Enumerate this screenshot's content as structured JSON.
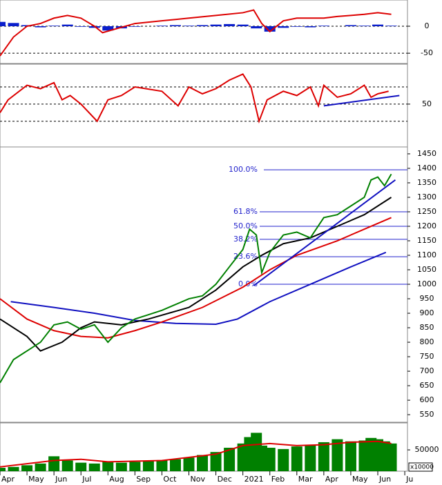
{
  "chart_data": [
    {
      "type": "line",
      "xlim": [
        0,
        15.1
      ],
      "ylim": [
        -69,
        46
      ],
      "yticks": [
        0,
        -50
      ],
      "series": [
        {
          "style": "bar",
          "color": "#0a1ecc",
          "x": [
            0,
            0.5,
            1,
            1.5,
            2,
            2.5,
            3,
            3.5,
            4,
            4.5,
            5,
            5.5,
            6,
            6.5,
            7,
            7.5,
            8,
            8.5,
            9,
            9.5,
            10,
            10.5,
            11,
            11.5,
            12,
            12.5,
            13,
            13.5,
            14,
            14.5
          ],
          "values": [
            8,
            6,
            2,
            -2,
            1,
            3,
            -1,
            -3,
            -8,
            -4,
            -1,
            0,
            1,
            2,
            1,
            2,
            3,
            4,
            3,
            -4,
            -10,
            -3,
            -1,
            -2,
            1,
            0,
            2,
            1,
            3,
            1
          ]
        },
        {
          "style": "line",
          "color": "#dd0000",
          "x": [
            0,
            0.5,
            1,
            1.5,
            2,
            2.5,
            3,
            3.5,
            3.8,
            4.5,
            5,
            6,
            7,
            8,
            9,
            9.4,
            9.7,
            10,
            10.5,
            11,
            12,
            12.5,
            13,
            13.5,
            14,
            14.5
          ],
          "values": [
            -55,
            -20,
            0,
            5,
            15,
            20,
            15,
            0,
            -12,
            -2,
            5,
            10,
            15,
            20,
            25,
            30,
            5,
            -10,
            10,
            15,
            15,
            18,
            20,
            22,
            25,
            22
          ]
        }
      ]
    },
    {
      "type": "line",
      "xlim": [
        0,
        15.1
      ],
      "ylim": [
        0,
        95
      ],
      "yticks": [
        50
      ],
      "hlines": [
        70,
        50,
        30
      ],
      "series": [
        {
          "style": "line",
          "color": "#dd0000",
          "x": [
            0,
            0.3,
            1,
            1.5,
            2,
            2.3,
            2.6,
            3,
            3.6,
            4,
            4.5,
            5,
            6,
            6.6,
            7,
            7.5,
            8,
            8.5,
            9,
            9.3,
            9.6,
            9.9,
            10.5,
            11,
            11.5,
            11.8,
            12,
            12.5,
            13,
            13.5,
            13.75,
            14,
            14.4
          ],
          "values": [
            40,
            55,
            72,
            68,
            75,
            55,
            60,
            50,
            30,
            55,
            60,
            70,
            65,
            48,
            70,
            62,
            68,
            78,
            85,
            70,
            30,
            55,
            65,
            60,
            70,
            48,
            72,
            58,
            62,
            72,
            58,
            62,
            65
          ]
        },
        {
          "style": "line",
          "color": "#1010c0",
          "x": [
            12,
            14.8
          ],
          "values": [
            48,
            60
          ]
        }
      ]
    },
    {
      "type": "line",
      "xlim": [
        0,
        15.1
      ],
      "ylim": [
        524,
        1469
      ],
      "yticks": [
        550,
        600,
        650,
        700,
        750,
        800,
        850,
        900,
        950,
        1000,
        1050,
        1100,
        1150,
        1200,
        1250,
        1300,
        1350,
        1400,
        1450
      ],
      "fib_levels": [
        {
          "value": 1395,
          "label": "100.0%"
        },
        {
          "value": 1250,
          "label": "61.8%"
        },
        {
          "value": 1200,
          "label": "50.0%"
        },
        {
          "value": 1155,
          "label": "38.2%"
        },
        {
          "value": 1095,
          "label": "23.6%"
        },
        {
          "value": 1000,
          "label": "0.0%"
        }
      ],
      "series": [
        {
          "style": "line",
          "color": "#1010c0",
          "x": [
            0.4,
            2,
            3.5,
            5,
            6.5,
            8,
            8.8,
            10,
            11.5,
            13,
            14.3
          ],
          "values": [
            940,
            920,
            900,
            875,
            865,
            862,
            880,
            940,
            1000,
            1060,
            1110
          ]
        },
        {
          "style": "line",
          "color": "#dd0000",
          "x": [
            0,
            1,
            2,
            3,
            4,
            5,
            6,
            7.5,
            9,
            10,
            11,
            12.5,
            13.5,
            14.5
          ],
          "values": [
            950,
            880,
            840,
            820,
            815,
            840,
            870,
            920,
            990,
            1050,
            1100,
            1150,
            1190,
            1230
          ]
        },
        {
          "style": "line",
          "color": "#000000",
          "x": [
            0,
            1,
            1.5,
            2.3,
            3,
            3.5,
            4.5,
            5.5,
            7,
            8,
            9,
            9.7,
            10.5,
            11.5,
            12.5,
            13.5,
            14.5
          ],
          "values": [
            880,
            820,
            770,
            800,
            850,
            870,
            860,
            880,
            920,
            980,
            1060,
            1100,
            1140,
            1160,
            1200,
            1240,
            1300
          ]
        },
        {
          "style": "line",
          "color": "#008000",
          "x": [
            0,
            0.5,
            1,
            1.5,
            2,
            2.5,
            3,
            3.5,
            4,
            4.5,
            5,
            5.5,
            6,
            6.5,
            7,
            7.5,
            8,
            8.5,
            9,
            9.25,
            9.5,
            9.7,
            10,
            10.5,
            11,
            11.5,
            12,
            12.5,
            13,
            13.5,
            13.75,
            14,
            14.25,
            14.5
          ],
          "values": [
            660,
            740,
            770,
            800,
            860,
            870,
            845,
            860,
            800,
            850,
            880,
            895,
            910,
            930,
            950,
            960,
            1000,
            1060,
            1120,
            1190,
            1170,
            1040,
            1110,
            1170,
            1180,
            1160,
            1230,
            1240,
            1270,
            1300,
            1360,
            1370,
            1340,
            1380
          ]
        },
        {
          "style": "line",
          "color": "#1010c0",
          "x": [
            9.4,
            14.65
          ],
          "values": [
            995,
            1360
          ]
        }
      ]
    },
    {
      "type": "line",
      "xlim": [
        0,
        15.1
      ],
      "ylim": [
        0,
        110000
      ],
      "yticks": [
        50000
      ],
      "unit": "x10000",
      "xticks": [
        {
          "value": 0,
          "label": "Apr"
        },
        {
          "value": 1,
          "label": "May"
        },
        {
          "value": 2,
          "label": "Jun"
        },
        {
          "value": 3,
          "label": "Jul"
        },
        {
          "value": 4,
          "label": "Aug"
        },
        {
          "value": 5,
          "label": "Sep"
        },
        {
          "value": 6,
          "label": "Oct"
        },
        {
          "value": 7,
          "label": "Nov"
        },
        {
          "value": 8,
          "label": "Dec"
        },
        {
          "value": 9,
          "label": "2021"
        },
        {
          "value": 10,
          "label": "Feb"
        },
        {
          "value": 11,
          "label": "Mar"
        },
        {
          "value": 12,
          "label": "Apr"
        },
        {
          "value": 13,
          "label": "May"
        },
        {
          "value": 14,
          "label": "Jun"
        },
        {
          "value": 15,
          "label": "Ju"
        }
      ],
      "series": [
        {
          "style": "bar",
          "color": "#008000",
          "x": [
            0,
            0.5,
            1,
            1.5,
            2,
            2.5,
            3,
            3.5,
            4,
            4.5,
            5,
            5.5,
            6,
            6.5,
            7,
            7.5,
            8,
            8.5,
            9,
            9.25,
            9.5,
            9.7,
            10,
            10.5,
            11,
            11.5,
            12,
            12.5,
            13,
            13.5,
            13.75,
            14,
            14.25,
            14.5
          ],
          "values": [
            8000,
            10000,
            14000,
            18000,
            35000,
            25000,
            20000,
            18000,
            22000,
            20000,
            22000,
            24000,
            26000,
            28000,
            32000,
            38000,
            45000,
            55000,
            65000,
            80000,
            90000,
            60000,
            55000,
            52000,
            58000,
            60000,
            68000,
            75000,
            70000,
            72000,
            78000,
            75000,
            70000,
            65000
          ]
        },
        {
          "style": "line",
          "color": "#dd0000",
          "x": [
            0,
            2,
            3,
            4,
            6,
            8,
            9,
            10,
            11,
            12,
            13,
            14,
            14.5
          ],
          "values": [
            10000,
            25000,
            28000,
            22000,
            25000,
            40000,
            60000,
            65000,
            60000,
            62000,
            68000,
            70000,
            65000
          ]
        }
      ]
    }
  ]
}
